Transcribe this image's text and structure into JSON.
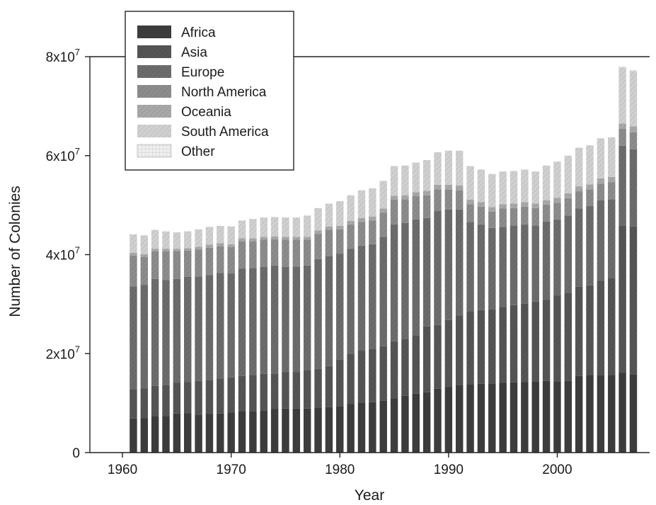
{
  "chart_data": {
    "type": "bar",
    "stacked": true,
    "title": "",
    "xlabel": "Year",
    "ylabel": "Number of Colonies",
    "xlim": [
      1957,
      2008.5
    ],
    "ylim": [
      0,
      80000000
    ],
    "x_ticks": [
      1960,
      1970,
      1980,
      1990,
      2000
    ],
    "x_tick_labels": [
      "1960",
      "1970",
      "1980",
      "1990",
      "2000"
    ],
    "y_ticks": [
      {
        "value": 0,
        "mantissa": "0",
        "exponent": ""
      },
      {
        "value": 20000000,
        "mantissa": "2x10",
        "exponent": "7"
      },
      {
        "value": 40000000,
        "mantissa": "4x10",
        "exponent": "7"
      },
      {
        "value": 60000000,
        "mantissa": "6x10",
        "exponent": "7"
      },
      {
        "value": 80000000,
        "mantissa": "8x10",
        "exponent": "7"
      }
    ],
    "legend_position": "top-left",
    "grid": false,
    "years": [
      1961,
      1962,
      1963,
      1964,
      1965,
      1966,
      1967,
      1968,
      1969,
      1970,
      1971,
      1972,
      1973,
      1974,
      1975,
      1976,
      1977,
      1978,
      1979,
      1980,
      1981,
      1982,
      1983,
      1984,
      1985,
      1986,
      1987,
      1988,
      1989,
      1990,
      1991,
      1992,
      1993,
      1994,
      1995,
      1996,
      1997,
      1998,
      1999,
      2000,
      2001,
      2002,
      2003,
      2004,
      2005,
      2006,
      2007
    ],
    "series": [
      {
        "name": "Africa",
        "color": "#3c3c3c",
        "pattern": "solid",
        "values": [
          6.9,
          7.0,
          7.3,
          7.3,
          7.9,
          8.0,
          7.7,
          7.8,
          7.9,
          8.1,
          8.3,
          8.3,
          8.5,
          8.8,
          8.9,
          8.9,
          8.9,
          9.1,
          9.2,
          9.4,
          9.8,
          10.1,
          10.2,
          10.5,
          11.0,
          11.5,
          11.9,
          12.2,
          12.9,
          13.3,
          13.7,
          13.8,
          13.9,
          14.0,
          14.1,
          14.2,
          14.3,
          14.4,
          14.5,
          14.4,
          14.5,
          15.5,
          15.6,
          15.7,
          15.6,
          16.1,
          15.8
        ]
      },
      {
        "name": "Asia",
        "color": "#555555",
        "pattern": "diag",
        "values": [
          5.9,
          6.0,
          6.2,
          6.3,
          6.2,
          6.3,
          6.8,
          6.8,
          7.1,
          7.1,
          7.2,
          7.3,
          7.4,
          7.2,
          7.4,
          7.4,
          7.7,
          7.8,
          8.3,
          9.4,
          10.2,
          10.5,
          10.7,
          11.0,
          11.5,
          11.5,
          11.8,
          13.3,
          12.9,
          13.5,
          14.0,
          14.8,
          14.9,
          14.9,
          15.3,
          15.6,
          15.8,
          16.1,
          16.4,
          17.3,
          17.8,
          18.0,
          18.2,
          19.0,
          19.7,
          29.7,
          29.9
        ]
      },
      {
        "name": "Europe",
        "color": "#6c6c6c",
        "pattern": "diag",
        "values": [
          20.8,
          20.9,
          21.6,
          21.3,
          21.0,
          21.2,
          21.1,
          21.3,
          21.3,
          21.0,
          21.7,
          21.7,
          21.6,
          21.8,
          21.2,
          21.3,
          21.2,
          22.2,
          22.2,
          21.4,
          21.2,
          21.2,
          21.2,
          22.1,
          23.6,
          23.4,
          23.4,
          21.9,
          23.0,
          22.3,
          21.4,
          18.0,
          17.3,
          16.5,
          16.2,
          16.1,
          16.0,
          15.4,
          15.8,
          15.4,
          15.6,
          15.8,
          16.0,
          16.3,
          15.9,
          16.2,
          15.6
        ]
      },
      {
        "name": "North America",
        "color": "#8c8c8c",
        "pattern": "diag",
        "values": [
          6.2,
          5.6,
          5.6,
          5.8,
          5.6,
          5.3,
          5.4,
          5.5,
          5.4,
          5.3,
          5.5,
          5.4,
          5.5,
          5.3,
          5.5,
          5.4,
          5.2,
          5.1,
          5.3,
          4.9,
          4.9,
          4.8,
          4.8,
          4.9,
          5.0,
          4.8,
          4.7,
          4.6,
          4.4,
          4.0,
          3.9,
          3.6,
          3.6,
          3.3,
          3.7,
          3.5,
          3.6,
          3.5,
          3.4,
          3.4,
          3.5,
          3.5,
          3.4,
          3.3,
          3.4,
          3.4,
          3.4
        ]
      },
      {
        "name": "Oceania",
        "color": "#a8a8a8",
        "pattern": "diag",
        "values": [
          0.6,
          0.6,
          0.5,
          0.5,
          0.5,
          0.5,
          0.6,
          0.6,
          0.6,
          0.6,
          0.6,
          0.6,
          0.6,
          0.6,
          0.6,
          0.6,
          0.6,
          0.7,
          0.7,
          0.7,
          0.7,
          0.8,
          0.8,
          0.8,
          0.8,
          0.8,
          0.8,
          0.9,
          0.9,
          1.0,
          1.0,
          0.9,
          0.9,
          0.9,
          0.9,
          0.9,
          0.9,
          0.9,
          0.9,
          1.0,
          1.0,
          1.0,
          1.0,
          1.1,
          1.1,
          1.1,
          1.2
        ]
      },
      {
        "name": "South America",
        "color": "#d0d0d0",
        "pattern": "diag",
        "values": [
          3.7,
          3.8,
          3.8,
          3.5,
          3.3,
          3.4,
          3.5,
          3.6,
          3.5,
          3.6,
          3.6,
          3.9,
          3.9,
          3.9,
          3.9,
          3.9,
          4.3,
          4.5,
          4.6,
          5.0,
          5.2,
          5.6,
          5.7,
          5.6,
          6.0,
          6.0,
          6.0,
          6.2,
          6.6,
          6.9,
          7.0,
          6.8,
          6.6,
          6.7,
          6.6,
          6.6,
          6.6,
          6.5,
          7.0,
          7.3,
          7.6,
          7.8,
          7.9,
          8.1,
          8.0,
          11.3,
          11.2
        ]
      },
      {
        "name": "Other",
        "color": "#efefef",
        "pattern": "grid",
        "values": [
          0.0,
          0.0,
          0.0,
          0.0,
          0.0,
          0.0,
          0.0,
          0.0,
          0.0,
          0.0,
          0.0,
          0.0,
          0.0,
          0.0,
          0.0,
          0.0,
          0.0,
          0.0,
          0.0,
          0.0,
          0.0,
          0.0,
          0.0,
          0.0,
          0.0,
          0.0,
          0.0,
          0.0,
          0.0,
          0.0,
          0.0,
          0.0,
          0.0,
          0.0,
          0.0,
          0.0,
          0.0,
          0.0,
          0.0,
          0.0,
          0.0,
          0.0,
          0.0,
          0.0,
          0.0,
          0.3,
          0.3
        ]
      }
    ],
    "value_scale_note": "series values are in millions of colonies"
  }
}
